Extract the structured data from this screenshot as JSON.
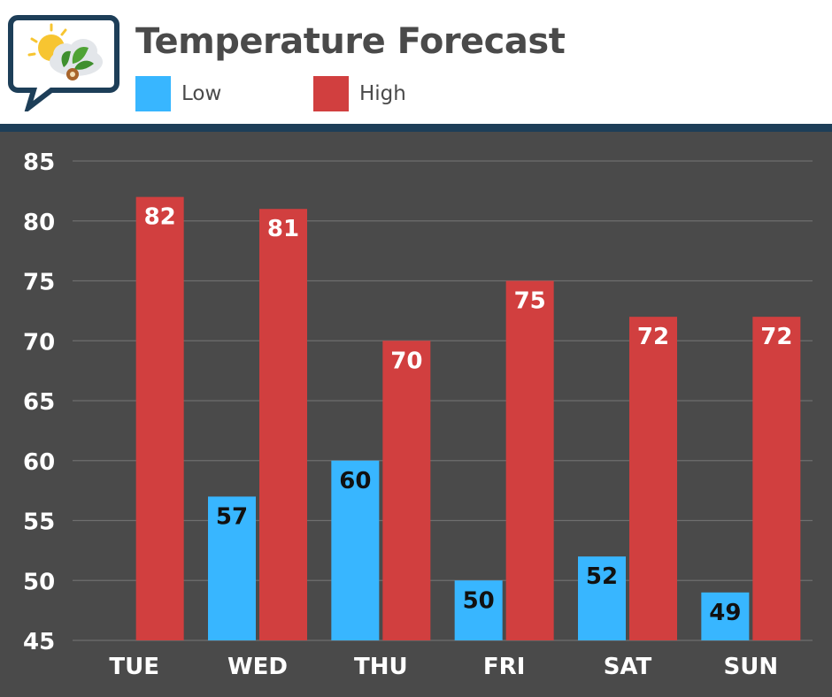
{
  "header": {
    "title": "Temperature Forecast",
    "logo_icon": "weather-leaf-speech-bubble-icon"
  },
  "colors": {
    "low": "#38b6ff",
    "high": "#d13f3f",
    "plot_bg": "#4a4a4a",
    "divider": "#1d3e58"
  },
  "chart_data": {
    "type": "bar",
    "categories": [
      "TUE",
      "WED",
      "THU",
      "FRI",
      "SAT",
      "SUN"
    ],
    "series": [
      {
        "name": "Low",
        "values": [
          null,
          57,
          60,
          50,
          52,
          49
        ],
        "color": "#38b6ff"
      },
      {
        "name": "High",
        "values": [
          82,
          81,
          70,
          75,
          72,
          72
        ],
        "color": "#d13f3f"
      }
    ],
    "title": "Temperature Forecast",
    "xlabel": "",
    "ylabel": "",
    "ylim": [
      45,
      85
    ],
    "yticks": [
      45,
      50,
      55,
      60,
      65,
      70,
      75,
      80,
      85
    ],
    "grid": true,
    "legend_position": "top-left"
  }
}
